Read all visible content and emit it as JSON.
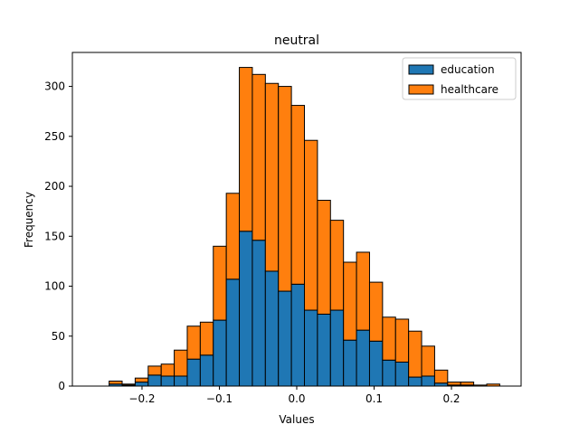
{
  "chart_data": {
    "type": "bar",
    "stacked": true,
    "title": "neutral",
    "xlabel": "Values",
    "ylabel": "Frequency",
    "xlim": [
      -0.29,
      0.29
    ],
    "ylim": [
      0,
      334
    ],
    "xticks": [
      -0.2,
      -0.1,
      0.0,
      0.1,
      0.2
    ],
    "xtick_labels": [
      "−0.2",
      "−0.1",
      "0.0",
      "0.1",
      "0.2"
    ],
    "yticks": [
      0,
      50,
      100,
      150,
      200,
      250,
      300
    ],
    "yticks_labels": [
      "0",
      "50",
      "100",
      "150",
      "200",
      "250",
      "300"
    ],
    "bins": {
      "start": -0.2425,
      "width": 0.01683
    },
    "series": [
      {
        "name": "education",
        "color": "#1f77b4",
        "values": [
          2,
          1,
          4,
          11,
          10,
          10,
          27,
          31,
          66,
          107,
          155,
          146,
          115,
          95,
          102,
          76,
          72,
          76,
          46,
          56,
          45,
          26,
          24,
          9,
          10,
          3,
          1,
          1,
          0,
          0
        ]
      },
      {
        "name": "healthcare",
        "color": "#ff7f0e",
        "values": [
          3,
          1,
          4,
          9,
          12,
          26,
          33,
          33,
          74,
          86,
          164,
          166,
          188,
          205,
          179,
          170,
          114,
          90,
          78,
          78,
          59,
          43,
          43,
          46,
          30,
          13,
          3,
          3,
          1,
          2
        ]
      }
    ],
    "legend": {
      "position": "upper right",
      "entries": [
        "education",
        "healthcare"
      ]
    }
  }
}
